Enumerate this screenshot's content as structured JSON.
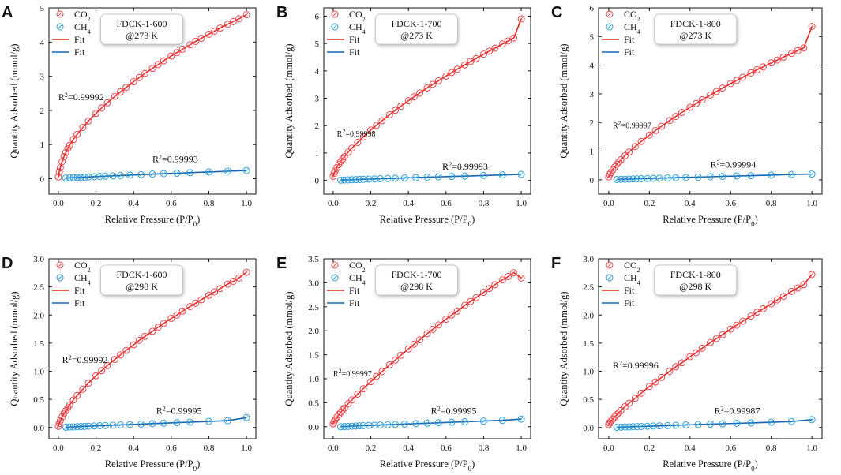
{
  "figure": {
    "common": {
      "xlabel_main": "Relative Pressure (P/P",
      "xlabel_sub": "0",
      "xlabel_close": ")",
      "ylabel": "Quantity Adsorbed (mmol/g)",
      "legend": {
        "co2_main": "CO",
        "co2_sub": "2",
        "ch4_main": "CH",
        "ch4_sub": "4",
        "fit_co2": "Fit",
        "fit_ch4": "Fit"
      },
      "r2_prefix": "R",
      "r2_sup": "2"
    },
    "colors": {
      "co2": "#e8454a",
      "ch4": "#2c9fd8",
      "co2_fit": "#e0241c",
      "ch4_fit": "#1566b0"
    }
  },
  "chart_data": [
    {
      "type": "scatter",
      "panel": "A",
      "title": [
        "FDCK-1-600",
        "@273 K"
      ],
      "xlim": [
        -0.05,
        1.05
      ],
      "xticks": [
        0.0,
        0.2,
        0.4,
        0.6,
        0.8,
        1.0
      ],
      "ylim": [
        -0.45,
        5.0
      ],
      "yticks": [
        0,
        1,
        2,
        3,
        4,
        5
      ],
      "ytick_labels": [
        "0",
        "1",
        "2",
        "3",
        "4",
        "5"
      ],
      "series": [
        {
          "name": "CO2",
          "x": [
            0.0,
            0.005,
            0.01,
            0.02,
            0.03,
            0.04,
            0.05,
            0.06,
            0.08,
            0.1,
            0.13,
            0.16,
            0.2,
            0.23,
            0.26,
            0.3,
            0.33,
            0.36,
            0.4,
            0.43,
            0.46,
            0.5,
            0.53,
            0.56,
            0.6,
            0.63,
            0.66,
            0.7,
            0.73,
            0.76,
            0.8,
            0.83,
            0.86,
            0.9,
            0.93,
            0.96,
            1.0
          ],
          "y": [
            0.05,
            0.2,
            0.32,
            0.5,
            0.65,
            0.77,
            0.88,
            0.98,
            1.15,
            1.3,
            1.5,
            1.69,
            1.91,
            2.07,
            2.22,
            2.41,
            2.54,
            2.67,
            2.84,
            2.96,
            3.08,
            3.23,
            3.34,
            3.45,
            3.59,
            3.69,
            3.79,
            3.92,
            4.02,
            4.11,
            4.23,
            4.32,
            4.41,
            4.52,
            4.6,
            4.68,
            4.8
          ]
        },
        {
          "name": "CH4",
          "x": [
            0.04,
            0.06,
            0.08,
            0.1,
            0.12,
            0.14,
            0.16,
            0.19,
            0.22,
            0.25,
            0.29,
            0.33,
            0.38,
            0.44,
            0.5,
            0.56,
            0.63,
            0.7,
            0.8,
            0.9,
            1.0
          ],
          "y": [
            0.02,
            0.025,
            0.031,
            0.036,
            0.042,
            0.047,
            0.052,
            0.06,
            0.068,
            0.075,
            0.085,
            0.095,
            0.107,
            0.12,
            0.135,
            0.148,
            0.163,
            0.178,
            0.2,
            0.22,
            0.24
          ]
        }
      ],
      "r2": [
        {
          "label": "=0.99992",
          "x": 0.0,
          "y": 2.3
        },
        {
          "label": "=0.99993",
          "x": 0.5,
          "y": 0.48
        }
      ]
    },
    {
      "type": "scatter",
      "panel": "B",
      "title": [
        "FDCK-1-700",
        "@273 K"
      ],
      "xlim": [
        -0.05,
        1.05
      ],
      "xticks": [
        0.0,
        0.2,
        0.4,
        0.6,
        0.8,
        1.0
      ],
      "ylim": [
        -0.5,
        6.3
      ],
      "yticks": [
        0,
        1,
        2,
        3,
        4,
        5,
        6
      ],
      "ytick_labels": [
        "0",
        "1",
        "2",
        "3",
        "4",
        "5",
        "6"
      ],
      "series": [
        {
          "name": "CO2",
          "x": [
            0.0,
            0.005,
            0.01,
            0.02,
            0.03,
            0.04,
            0.05,
            0.06,
            0.08,
            0.1,
            0.13,
            0.16,
            0.2,
            0.23,
            0.26,
            0.3,
            0.33,
            0.36,
            0.4,
            0.43,
            0.46,
            0.5,
            0.53,
            0.56,
            0.6,
            0.63,
            0.66,
            0.7,
            0.73,
            0.76,
            0.8,
            0.83,
            0.86,
            0.9,
            0.93,
            0.96,
            1.0
          ],
          "y": [
            0.15,
            0.26,
            0.34,
            0.47,
            0.58,
            0.69,
            0.78,
            0.87,
            1.03,
            1.18,
            1.39,
            1.59,
            1.84,
            2.01,
            2.18,
            2.4,
            2.56,
            2.71,
            2.91,
            3.05,
            3.19,
            3.38,
            3.51,
            3.64,
            3.81,
            3.94,
            4.06,
            4.22,
            4.34,
            4.45,
            4.61,
            4.72,
            4.83,
            4.98,
            5.09,
            5.2,
            5.9
          ]
        },
        {
          "name": "CH4",
          "x": [
            0.04,
            0.06,
            0.08,
            0.1,
            0.12,
            0.14,
            0.16,
            0.19,
            0.22,
            0.25,
            0.29,
            0.33,
            0.38,
            0.44,
            0.5,
            0.56,
            0.63,
            0.7,
            0.8,
            0.9,
            1.0
          ],
          "y": [
            0.01,
            0.015,
            0.02,
            0.025,
            0.03,
            0.035,
            0.04,
            0.047,
            0.054,
            0.061,
            0.07,
            0.079,
            0.09,
            0.103,
            0.116,
            0.129,
            0.144,
            0.158,
            0.18,
            0.2,
            0.22
          ]
        }
      ],
      "r2": [
        {
          "label": "=0.99998",
          "x": 0.02,
          "y": 1.6
        },
        {
          "label": "=0.99993",
          "x": 0.58,
          "y": 0.4
        }
      ]
    },
    {
      "type": "scatter",
      "panel": "C",
      "title": [
        "FDCK-1-800",
        "@273 K"
      ],
      "xlim": [
        -0.05,
        1.05
      ],
      "xticks": [
        0.0,
        0.2,
        0.4,
        0.6,
        0.8,
        1.0
      ],
      "ylim": [
        -0.5,
        6.0
      ],
      "yticks": [
        0,
        1,
        2,
        3,
        4,
        5,
        6
      ],
      "ytick_labels": [
        "0",
        "1",
        "2",
        "3",
        "4",
        "5",
        "6"
      ],
      "series": [
        {
          "name": "CO2",
          "x": [
            0.0,
            0.005,
            0.01,
            0.02,
            0.03,
            0.04,
            0.05,
            0.06,
            0.08,
            0.1,
            0.13,
            0.16,
            0.2,
            0.23,
            0.26,
            0.3,
            0.33,
            0.36,
            0.4,
            0.43,
            0.46,
            0.5,
            0.53,
            0.56,
            0.6,
            0.63,
            0.66,
            0.7,
            0.73,
            0.76,
            0.8,
            0.83,
            0.86,
            0.9,
            0.93,
            0.96,
            1.0
          ],
          "y": [
            0.1,
            0.18,
            0.25,
            0.35,
            0.45,
            0.54,
            0.62,
            0.7,
            0.84,
            0.97,
            1.16,
            1.34,
            1.56,
            1.72,
            1.87,
            2.07,
            2.21,
            2.35,
            2.53,
            2.66,
            2.79,
            2.96,
            3.08,
            3.2,
            3.36,
            3.47,
            3.58,
            3.73,
            3.84,
            3.94,
            4.08,
            4.18,
            4.28,
            4.41,
            4.51,
            4.6,
            5.35
          ]
        },
        {
          "name": "CH4",
          "x": [
            0.04,
            0.06,
            0.08,
            0.1,
            0.12,
            0.14,
            0.16,
            0.19,
            0.22,
            0.25,
            0.29,
            0.33,
            0.38,
            0.44,
            0.5,
            0.56,
            0.63,
            0.7,
            0.8,
            0.9,
            1.0
          ],
          "y": [
            0.01,
            0.015,
            0.02,
            0.024,
            0.029,
            0.033,
            0.038,
            0.044,
            0.051,
            0.057,
            0.065,
            0.073,
            0.083,
            0.095,
            0.107,
            0.119,
            0.132,
            0.145,
            0.165,
            0.185,
            0.2
          ]
        }
      ],
      "r2": [
        {
          "label": "=0.99997",
          "x": 0.02,
          "y": 1.8
        },
        {
          "label": "=0.99994",
          "x": 0.5,
          "y": 0.42
        }
      ]
    },
    {
      "type": "scatter",
      "panel": "D",
      "title": [
        "FDCK-1-600",
        "@298 K"
      ],
      "xlim": [
        -0.05,
        1.05
      ],
      "xticks": [
        0.0,
        0.2,
        0.4,
        0.6,
        0.8,
        1.0
      ],
      "ylim": [
        -0.2,
        3.0
      ],
      "yticks": [
        0.0,
        0.5,
        1.0,
        1.5,
        2.0,
        2.5,
        3.0
      ],
      "ytick_labels": [
        "0.0",
        "0.5",
        "1.0",
        "1.5",
        "2.0",
        "2.5",
        "3.0"
      ],
      "series": [
        {
          "name": "CO2",
          "x": [
            0.0,
            0.005,
            0.01,
            0.02,
            0.03,
            0.04,
            0.05,
            0.06,
            0.08,
            0.1,
            0.13,
            0.16,
            0.2,
            0.23,
            0.26,
            0.3,
            0.33,
            0.36,
            0.4,
            0.43,
            0.46,
            0.5,
            0.53,
            0.56,
            0.6,
            0.63,
            0.66,
            0.7,
            0.73,
            0.76,
            0.8,
            0.83,
            0.86,
            0.9,
            0.93,
            0.96,
            1.0
          ],
          "y": [
            0.02,
            0.07,
            0.12,
            0.19,
            0.25,
            0.3,
            0.35,
            0.4,
            0.49,
            0.57,
            0.68,
            0.79,
            0.92,
            1.01,
            1.1,
            1.21,
            1.29,
            1.37,
            1.47,
            1.55,
            1.62,
            1.71,
            1.78,
            1.85,
            1.94,
            2.0,
            2.07,
            2.15,
            2.21,
            2.27,
            2.35,
            2.41,
            2.47,
            2.55,
            2.6,
            2.66,
            2.76
          ]
        },
        {
          "name": "CH4",
          "x": [
            0.04,
            0.06,
            0.08,
            0.1,
            0.12,
            0.14,
            0.16,
            0.19,
            0.22,
            0.25,
            0.29,
            0.33,
            0.38,
            0.44,
            0.5,
            0.56,
            0.63,
            0.7,
            0.8,
            0.9,
            1.0
          ],
          "y": [
            0.005,
            0.008,
            0.011,
            0.014,
            0.017,
            0.02,
            0.023,
            0.027,
            0.031,
            0.035,
            0.041,
            0.046,
            0.053,
            0.061,
            0.069,
            0.077,
            0.086,
            0.095,
            0.108,
            0.121,
            0.175
          ]
        }
      ],
      "r2": [
        {
          "label": "=0.99992",
          "x": 0.02,
          "y": 1.15
        },
        {
          "label": "=0.99995",
          "x": 0.52,
          "y": 0.24
        }
      ]
    },
    {
      "type": "scatter",
      "panel": "E",
      "title": [
        "FDCK-1-700",
        "@298 K"
      ],
      "xlim": [
        -0.05,
        1.05
      ],
      "xticks": [
        0.0,
        0.2,
        0.4,
        0.6,
        0.8,
        1.0
      ],
      "ylim": [
        -0.25,
        3.5
      ],
      "yticks": [
        0.0,
        0.5,
        1.0,
        1.5,
        2.0,
        2.5,
        3.0,
        3.5
      ],
      "ytick_labels": [
        "0.0",
        "0.5",
        "1.0",
        "1.5",
        "2.0",
        "2.5",
        "3.0",
        "3.5"
      ],
      "series": [
        {
          "name": "CO2",
          "x": [
            0.0,
            0.005,
            0.01,
            0.02,
            0.03,
            0.04,
            0.05,
            0.06,
            0.08,
            0.1,
            0.13,
            0.16,
            0.2,
            0.23,
            0.26,
            0.3,
            0.33,
            0.36,
            0.4,
            0.43,
            0.46,
            0.5,
            0.53,
            0.56,
            0.6,
            0.63,
            0.66,
            0.7,
            0.73,
            0.76,
            0.8,
            0.83,
            0.86,
            0.9,
            0.93,
            0.96,
            1.0
          ],
          "y": [
            0.06,
            0.1,
            0.14,
            0.2,
            0.25,
            0.3,
            0.35,
            0.39,
            0.48,
            0.56,
            0.68,
            0.79,
            0.94,
            1.05,
            1.15,
            1.29,
            1.39,
            1.49,
            1.62,
            1.72,
            1.81,
            1.94,
            2.03,
            2.12,
            2.24,
            2.33,
            2.41,
            2.53,
            2.61,
            2.69,
            2.8,
            2.88,
            2.96,
            3.06,
            3.13,
            3.21,
            3.1
          ]
        },
        {
          "name": "CH4",
          "x": [
            0.04,
            0.06,
            0.08,
            0.1,
            0.12,
            0.14,
            0.16,
            0.19,
            0.22,
            0.25,
            0.29,
            0.33,
            0.38,
            0.44,
            0.5,
            0.56,
            0.63,
            0.7,
            0.8,
            0.9,
            1.0
          ],
          "y": [
            0.0,
            0.004,
            0.008,
            0.012,
            0.015,
            0.019,
            0.022,
            0.027,
            0.032,
            0.036,
            0.042,
            0.048,
            0.056,
            0.065,
            0.074,
            0.083,
            0.094,
            0.104,
            0.118,
            0.133,
            0.16
          ]
        }
      ],
      "r2": [
        {
          "label": "=0.99997",
          "x": 0.0,
          "y": 1.05
        },
        {
          "label": "=0.99995",
          "x": 0.52,
          "y": 0.27
        }
      ]
    },
    {
      "type": "scatter",
      "panel": "F",
      "title": [
        "FDCK-1-800",
        "@298 K"
      ],
      "xlim": [
        -0.05,
        1.05
      ],
      "xticks": [
        0.0,
        0.2,
        0.4,
        0.6,
        0.8,
        1.0
      ],
      "ylim": [
        -0.2,
        3.0
      ],
      "yticks": [
        0.0,
        0.5,
        1.0,
        1.5,
        2.0,
        2.5,
        3.0
      ],
      "ytick_labels": [
        "0.0",
        "0.5",
        "1.0",
        "1.5",
        "2.0",
        "2.5",
        "3.0"
      ],
      "series": [
        {
          "name": "CO2",
          "x": [
            0.0,
            0.005,
            0.01,
            0.02,
            0.03,
            0.04,
            0.05,
            0.06,
            0.08,
            0.1,
            0.13,
            0.16,
            0.2,
            0.23,
            0.26,
            0.3,
            0.33,
            0.36,
            0.4,
            0.43,
            0.46,
            0.5,
            0.53,
            0.56,
            0.6,
            0.63,
            0.66,
            0.7,
            0.73,
            0.76,
            0.8,
            0.83,
            0.86,
            0.9,
            0.93,
            0.96,
            1.0
          ],
          "y": [
            0.05,
            0.08,
            0.11,
            0.15,
            0.19,
            0.23,
            0.26,
            0.3,
            0.37,
            0.43,
            0.52,
            0.61,
            0.73,
            0.81,
            0.89,
            1.0,
            1.08,
            1.15,
            1.26,
            1.33,
            1.41,
            1.51,
            1.58,
            1.65,
            1.75,
            1.82,
            1.89,
            1.98,
            2.05,
            2.11,
            2.2,
            2.27,
            2.33,
            2.42,
            2.48,
            2.54,
            2.72
          ]
        },
        {
          "name": "CH4",
          "x": [
            0.04,
            0.06,
            0.08,
            0.1,
            0.12,
            0.14,
            0.16,
            0.19,
            0.22,
            0.25,
            0.29,
            0.33,
            0.38,
            0.44,
            0.5,
            0.56,
            0.63,
            0.7,
            0.8,
            0.9,
            1.0
          ],
          "y": [
            0.004,
            0.006,
            0.009,
            0.011,
            0.014,
            0.016,
            0.019,
            0.022,
            0.026,
            0.029,
            0.034,
            0.039,
            0.045,
            0.052,
            0.059,
            0.066,
            0.074,
            0.082,
            0.094,
            0.106,
            0.14
          ]
        }
      ],
      "r2": [
        {
          "label": "=0.99996",
          "x": 0.02,
          "y": 1.05
        },
        {
          "label": "=0.99987",
          "x": 0.52,
          "y": 0.24
        }
      ]
    }
  ]
}
